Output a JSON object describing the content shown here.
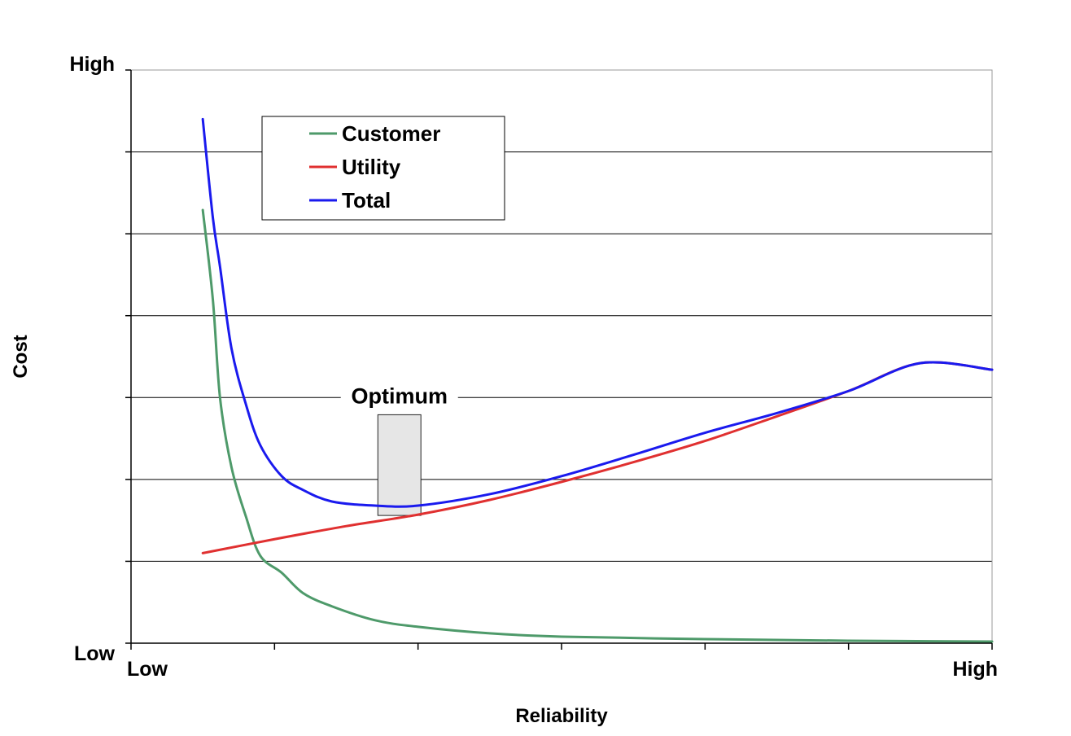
{
  "chart_data": {
    "type": "line",
    "xlabel": "Reliability",
    "ylabel": "Cost",
    "x_tick_labels": {
      "min": "Low",
      "max": "High"
    },
    "y_tick_labels": {
      "min": "Low",
      "max": "High"
    },
    "xlim": [
      0,
      6
    ],
    "ylim": [
      0,
      7
    ],
    "grid": true,
    "legend_position": "top-left",
    "annotation": {
      "text": "Optimum",
      "x_range": [
        1.72,
        2.02
      ],
      "y_range": [
        1.56,
        2.79
      ]
    },
    "series": [
      {
        "name": "Customer",
        "color": "#4e9a6a",
        "x": [
          0.5,
          0.57,
          0.62,
          0.7,
          0.8,
          0.9,
          1.05,
          1.2,
          1.4,
          1.7,
          2.0,
          2.5,
          3.0,
          4.0,
          5.0,
          6.0
        ],
        "y": [
          5.29,
          4.2,
          3.0,
          2.15,
          1.55,
          1.07,
          0.86,
          0.61,
          0.45,
          0.28,
          0.2,
          0.12,
          0.08,
          0.05,
          0.03,
          0.02
        ]
      },
      {
        "name": "Utility",
        "color": "#e03030",
        "x": [
          0.5,
          1.0,
          1.5,
          2.0,
          2.5,
          3.0,
          3.5,
          4.0,
          4.5,
          5.0,
          5.5,
          6.0
        ],
        "y": [
          1.1,
          1.27,
          1.43,
          1.57,
          1.75,
          1.97,
          2.21,
          2.47,
          2.77,
          3.08,
          3.42,
          3.34
        ]
      },
      {
        "name": "Total",
        "color": "#1a1aee",
        "x": [
          0.5,
          0.57,
          0.62,
          0.7,
          0.8,
          0.9,
          1.05,
          1.2,
          1.4,
          1.7,
          2.0,
          2.5,
          3.0,
          3.5,
          4.0,
          4.5,
          5.0,
          5.5,
          6.0
        ],
        "y": [
          6.4,
          5.2,
          4.6,
          3.6,
          2.92,
          2.42,
          2.04,
          1.87,
          1.73,
          1.68,
          1.68,
          1.82,
          2.04,
          2.3,
          2.57,
          2.81,
          3.08,
          3.42,
          3.34
        ]
      }
    ]
  }
}
